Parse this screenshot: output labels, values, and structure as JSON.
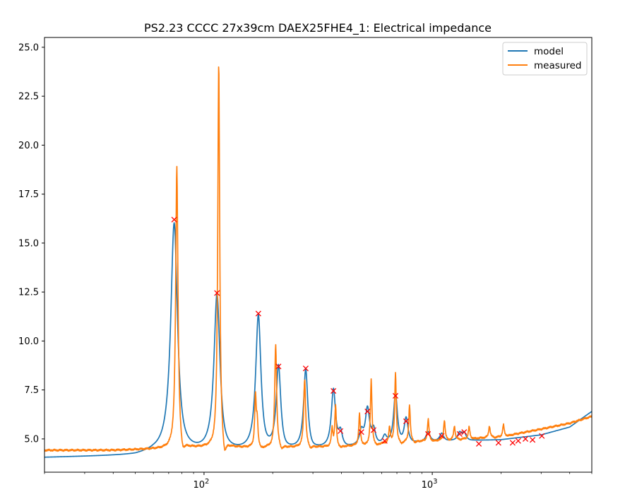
{
  "chart_data": {
    "type": "line",
    "title": "PS2.23 CCCC 27x39cm DAEX25FHE4_1: Electrical impedance",
    "xlabel": "",
    "ylabel": "",
    "x_scale": "log",
    "xlim": [
      20,
      5000
    ],
    "ylim": [
      3.3,
      25.5
    ],
    "x_ticks": [
      {
        "value": 100,
        "base": "10",
        "exp": "2"
      },
      {
        "value": 1000,
        "base": "10",
        "exp": "3"
      }
    ],
    "y_ticks": [
      5.0,
      7.5,
      10.0,
      12.5,
      15.0,
      17.5,
      20.0,
      22.5,
      25.0
    ],
    "y_tick_labels": [
      "5.0",
      "7.5",
      "10.0",
      "12.5",
      "15.0",
      "17.5",
      "20.0",
      "22.5",
      "25.0"
    ],
    "grid": false,
    "legend_position": "top-right",
    "series": [
      {
        "name": "model",
        "color": "#1f77b4",
        "baseline": [
          [
            20,
            4.05
          ],
          [
            50,
            4.15
          ],
          [
            60,
            4.28
          ],
          [
            100,
            4.25
          ],
          [
            200,
            4.35
          ],
          [
            400,
            4.5
          ],
          [
            700,
            4.7
          ],
          [
            1000,
            4.85
          ],
          [
            2000,
            4.95
          ],
          [
            3000,
            5.2
          ],
          [
            4000,
            5.6
          ],
          [
            5000,
            6.4
          ]
        ],
        "peaks": [
          {
            "f": 74,
            "a": 12.0,
            "w": 0.018
          },
          {
            "f": 114,
            "a": 8.2,
            "w": 0.016
          },
          {
            "f": 173,
            "a": 7.0,
            "w": 0.014
          },
          {
            "f": 212,
            "a": 4.3,
            "w": 0.012
          },
          {
            "f": 279,
            "a": 4.1,
            "w": 0.011
          },
          {
            "f": 369,
            "a": 3.0,
            "w": 0.011
          },
          {
            "f": 396,
            "a": 0.8,
            "w": 0.01
          },
          {
            "f": 489,
            "a": 0.7,
            "w": 0.01
          },
          {
            "f": 520,
            "a": 1.9,
            "w": 0.011
          },
          {
            "f": 553,
            "a": 0.8,
            "w": 0.01
          },
          {
            "f": 619,
            "a": 0.4,
            "w": 0.01
          },
          {
            "f": 690,
            "a": 2.6,
            "w": 0.01
          },
          {
            "f": 768,
            "a": 1.3,
            "w": 0.01
          },
          {
            "f": 958,
            "a": 0.5,
            "w": 0.01
          },
          {
            "f": 1100,
            "a": 0.4,
            "w": 0.01
          },
          {
            "f": 1318,
            "a": 0.4,
            "w": 0.01
          },
          {
            "f": 1380,
            "a": 0.4,
            "w": 0.01
          }
        ]
      },
      {
        "name": "measured",
        "color": "#ff7f0e",
        "baseline": [
          [
            20,
            4.42
          ],
          [
            40,
            4.42
          ],
          [
            60,
            4.48
          ],
          [
            100,
            4.55
          ],
          [
            200,
            4.55
          ],
          [
            400,
            4.6
          ],
          [
            700,
            4.8
          ],
          [
            1000,
            4.9
          ],
          [
            2000,
            5.1
          ],
          [
            3000,
            5.5
          ],
          [
            4000,
            5.8
          ],
          [
            5000,
            6.15
          ]
        ],
        "peaks": [
          {
            "f": 76,
            "a": 14.5,
            "w": 0.006
          },
          {
            "f": 116,
            "a": 19.8,
            "w": 0.005
          },
          {
            "f": 168,
            "a": 2.6,
            "w": 0.004
          },
          {
            "f": 171,
            "a": 1.2,
            "w": 0.004
          },
          {
            "f": 206,
            "a": 5.3,
            "w": 0.005
          },
          {
            "f": 276,
            "a": 3.5,
            "w": 0.005
          },
          {
            "f": 377,
            "a": 2.1,
            "w": 0.004
          },
          {
            "f": 364,
            "a": 0.9,
            "w": 0.004
          },
          {
            "f": 480,
            "a": 1.6,
            "w": 0.004
          },
          {
            "f": 540,
            "a": 3.3,
            "w": 0.004
          },
          {
            "f": 650,
            "a": 0.8,
            "w": 0.004
          },
          {
            "f": 690,
            "a": 3.6,
            "w": 0.004
          },
          {
            "f": 795,
            "a": 1.9,
            "w": 0.004
          },
          {
            "f": 960,
            "a": 1.1,
            "w": 0.004
          },
          {
            "f": 1130,
            "a": 1.0,
            "w": 0.004
          },
          {
            "f": 1250,
            "a": 0.7,
            "w": 0.004
          },
          {
            "f": 1450,
            "a": 0.6,
            "w": 0.004
          },
          {
            "f": 1780,
            "a": 0.6,
            "w": 0.004
          },
          {
            "f": 2050,
            "a": 0.6,
            "w": 0.004
          }
        ]
      }
    ],
    "markers": {
      "name": "peaks",
      "color": "#ff0000",
      "symbol": "x",
      "points": [
        [
          74,
          16.2
        ],
        [
          114,
          12.45
        ],
        [
          173,
          11.4
        ],
        [
          212,
          8.7
        ],
        [
          279,
          8.6
        ],
        [
          369,
          7.45
        ],
        [
          396,
          5.4
        ],
        [
          489,
          5.35
        ],
        [
          520,
          6.4
        ],
        [
          553,
          5.45
        ],
        [
          619,
          4.9
        ],
        [
          690,
          7.2
        ],
        [
          768,
          5.9
        ],
        [
          958,
          5.25
        ],
        [
          1100,
          5.15
        ],
        [
          1318,
          5.25
        ],
        [
          1380,
          5.35
        ],
        [
          1600,
          4.75
        ],
        [
          1950,
          4.8
        ],
        [
          2250,
          4.8
        ],
        [
          2380,
          4.9
        ],
        [
          2560,
          5.0
        ],
        [
          2750,
          4.95
        ],
        [
          3020,
          5.15
        ]
      ]
    }
  }
}
